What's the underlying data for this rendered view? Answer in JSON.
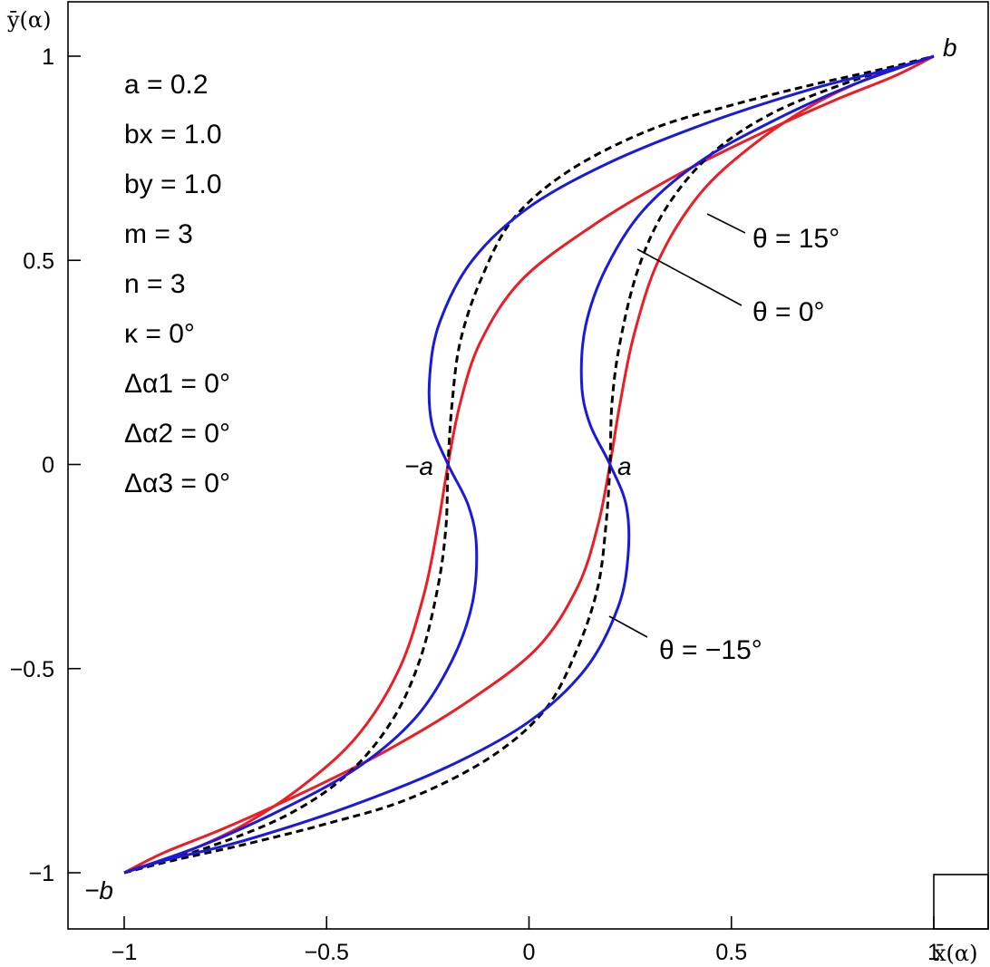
{
  "chart_data": {
    "type": "line",
    "xlabel": "x̄(α)",
    "ylabel": "ȳ(α)",
    "xlim": [
      -1.1,
      1.12
    ],
    "ylim": [
      -1.13,
      1.12
    ],
    "xticks": [
      -1,
      -0.5,
      0,
      0.5,
      1
    ],
    "xtick_labels": [
      "−1",
      "−0.5",
      "0",
      "0.5",
      "1"
    ],
    "yticks": [
      -1,
      -0.5,
      0,
      0.5,
      1
    ],
    "ytick_labels": [
      "−1",
      "−0.5",
      "0",
      "0.5",
      "1"
    ],
    "grid": false,
    "parameters": [
      "a = 0.2",
      "bx = 1.0",
      "by = 1.0",
      "m = 3",
      "n = 3",
      "κ = 0°",
      "Δα1 = 0°",
      "Δα2 = 0°",
      "Δα3 = 0°"
    ],
    "point_labels": [
      {
        "text": "b",
        "x": 1,
        "y": 1
      },
      {
        "text": "−b",
        "x": -1,
        "y": -1
      },
      {
        "text": "a",
        "x": 0.2,
        "y": 0
      },
      {
        "text": "−a",
        "x": -0.2,
        "y": 0
      }
    ],
    "series": [
      {
        "name": "θ = 15°",
        "color": "#ee1c24",
        "style": "solid",
        "branches": [
          {
            "x": [
              -1,
              -0.85,
              -0.7,
              -0.55,
              -0.42,
              -0.32,
              -0.26,
              -0.225,
              -0.2,
              -0.17,
              -0.12,
              -0.02,
              0.15,
              0.35,
              0.55,
              0.75,
              0.9,
              1
            ],
            "y": [
              -1,
              -0.95,
              -0.88,
              -0.78,
              -0.66,
              -0.5,
              -0.32,
              -0.15,
              0,
              0.15,
              0.3,
              0.45,
              0.58,
              0.7,
              0.8,
              0.89,
              0.95,
              1
            ]
          },
          {
            "x": [
              -1,
              -0.9,
              -0.75,
              -0.55,
              -0.35,
              -0.15,
              0.02,
              0.12,
              0.17,
              0.2,
              0.225,
              0.26,
              0.32,
              0.42,
              0.55,
              0.7,
              0.85,
              1
            ],
            "y": [
              -1,
              -0.95,
              -0.89,
              -0.8,
              -0.7,
              -0.58,
              -0.45,
              -0.3,
              -0.15,
              0,
              0.15,
              0.32,
              0.5,
              0.66,
              0.78,
              0.88,
              0.95,
              1
            ]
          }
        ]
      },
      {
        "name": "θ = 0°",
        "color": "#000000",
        "style": "dashed",
        "branches": [
          {
            "x": [
              -1,
              -0.8,
              -0.6,
              -0.45,
              -0.34,
              -0.27,
              -0.225,
              -0.205,
              -0.2,
              -0.19,
              -0.17,
              -0.12,
              -0.04,
              0.1,
              0.3,
              0.5,
              0.7,
              0.88,
              1
            ],
            "y": [
              -1,
              -0.94,
              -0.86,
              -0.76,
              -0.63,
              -0.48,
              -0.3,
              -0.15,
              0,
              0.15,
              0.3,
              0.45,
              0.6,
              0.72,
              0.82,
              0.88,
              0.93,
              0.97,
              1
            ]
          },
          {
            "x": [
              -1,
              -0.88,
              -0.7,
              -0.5,
              -0.3,
              -0.1,
              0.04,
              0.12,
              0.17,
              0.19,
              0.2,
              0.205,
              0.225,
              0.27,
              0.34,
              0.45,
              0.6,
              0.8,
              1
            ],
            "y": [
              -1,
              -0.97,
              -0.93,
              -0.88,
              -0.82,
              -0.72,
              -0.6,
              -0.45,
              -0.3,
              -0.15,
              0,
              0.15,
              0.3,
              0.48,
              0.63,
              0.76,
              0.86,
              0.94,
              1
            ]
          }
        ]
      },
      {
        "name": "θ = −15°",
        "color": "#1a1adf",
        "style": "solid",
        "branches": [
          {
            "x": [
              -1,
              -0.8,
              -0.6,
              -0.42,
              -0.28,
              -0.19,
              -0.14,
              -0.13,
              -0.15,
              -0.2,
              -0.24,
              -0.245,
              -0.22,
              -0.14,
              0.0,
              0.2,
              0.45,
              0.7,
              0.9,
              1
            ],
            "y": [
              -1,
              -0.93,
              -0.84,
              -0.74,
              -0.62,
              -0.48,
              -0.34,
              -0.2,
              -0.1,
              0,
              0.1,
              0.22,
              0.35,
              0.5,
              0.63,
              0.74,
              0.84,
              0.92,
              0.97,
              1
            ]
          },
          {
            "x": [
              -1,
              -0.9,
              -0.7,
              -0.45,
              -0.2,
              0.0,
              0.14,
              0.22,
              0.245,
              0.24,
              0.2,
              0.15,
              0.13,
              0.14,
              0.19,
              0.28,
              0.42,
              0.6,
              0.8,
              1
            ],
            "y": [
              -1,
              -0.97,
              -0.92,
              -0.84,
              -0.74,
              -0.63,
              -0.5,
              -0.35,
              -0.22,
              -0.1,
              0,
              0.1,
              0.2,
              0.34,
              0.48,
              0.62,
              0.74,
              0.84,
              0.93,
              1
            ]
          }
        ]
      }
    ],
    "annotations": [
      {
        "text": "θ = 15°",
        "series": "θ = 15°"
      },
      {
        "text": "θ = 0°",
        "series": "θ = 0°"
      },
      {
        "text": "θ = −15°",
        "series": "θ = −15°"
      }
    ]
  }
}
